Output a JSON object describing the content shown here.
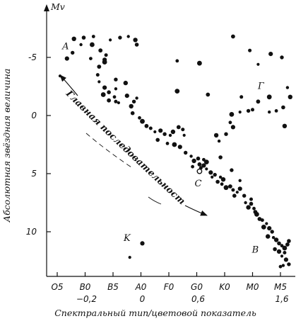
{
  "chart_data": {
    "type": "scatter",
    "title": "",
    "ylabel": "Абсолютная звёздная величина",
    "ylabel_top": "Mv",
    "xlabel": "Спектральный тип/цветовой показатель",
    "ylim": [
      13.5,
      -7.8
    ],
    "xlim": [
      -0.6,
      8.6
    ],
    "yticks": [
      "-5",
      "0",
      "5",
      "10"
    ],
    "yticks_values": [
      -5,
      0,
      5,
      10
    ],
    "xticks": [
      {
        "label": "O5",
        "sub": "",
        "x": 0
      },
      {
        "label": "B0",
        "sub": "−0,2",
        "x": 1
      },
      {
        "label": "B5",
        "sub": "",
        "x": 2
      },
      {
        "label": "A0",
        "sub": "0",
        "x": 3
      },
      {
        "label": "F0",
        "sub": "",
        "x": 4
      },
      {
        "label": "G0",
        "sub": "0,6",
        "x": 5
      },
      {
        "label": "K0",
        "sub": "",
        "x": 6
      },
      {
        "label": "M0",
        "sub": "",
        "x": 7
      },
      {
        "label": "M5",
        "sub": "1,6",
        "x": 8
      }
    ],
    "grid": false,
    "annotations": [
      {
        "text": "A",
        "x": 0.3,
        "y": -5.7
      },
      {
        "text": "Г",
        "x": 7.3,
        "y": -2.3
      },
      {
        "text": "C",
        "x": 5.05,
        "y": 6.1
      },
      {
        "text": "K",
        "x": 2.5,
        "y": 10.8
      },
      {
        "text": "B",
        "x": 7.1,
        "y": 11.8
      }
    ],
    "main_sequence_label": "Главная последовательность",
    "sun": {
      "x": 5.1,
      "y": 4.8
    },
    "series": [
      {
        "values": [
          [
            0.1,
            -3.4
          ],
          [
            0.35,
            -4.9
          ],
          [
            0.55,
            -5.4
          ],
          [
            0.85,
            -6.1
          ],
          [
            0.6,
            -6.6
          ],
          [
            0.95,
            -6.7
          ],
          [
            1.3,
            -6.8
          ],
          [
            1.25,
            -6.1
          ],
          [
            1.55,
            -5.6
          ],
          [
            1.75,
            -5.2
          ],
          [
            1.9,
            -6.5
          ],
          [
            1.7,
            -4.8
          ],
          [
            2.25,
            -6.7
          ],
          [
            2.55,
            -6.8
          ],
          [
            2.8,
            -6.5
          ],
          [
            2.85,
            -6.1
          ],
          [
            1.2,
            -4.9
          ],
          [
            1.7,
            -4.6
          ],
          [
            1.5,
            -4.2
          ],
          [
            1.45,
            -3.5
          ],
          [
            1.5,
            -2.9
          ],
          [
            1.7,
            -2.4
          ],
          [
            2.1,
            -3.1
          ],
          [
            2.1,
            -2.3
          ],
          [
            2.45,
            -2.8
          ],
          [
            1.85,
            -2.0
          ],
          [
            2.05,
            -1.6
          ],
          [
            1.65,
            -1.8
          ],
          [
            1.85,
            -1.3
          ],
          [
            2.1,
            -1.2
          ],
          [
            2.2,
            -1.1
          ],
          [
            2.5,
            -1.7
          ],
          [
            2.75,
            -1.2
          ],
          [
            2.85,
            -1.5
          ],
          [
            2.65,
            -0.8
          ],
          [
            2.7,
            -0.2
          ],
          [
            2.95,
            0.2
          ],
          [
            3.05,
            0.5
          ],
          [
            3.2,
            0.9
          ],
          [
            3.35,
            1.1
          ],
          [
            3.5,
            1.4
          ],
          [
            3.7,
            1.3
          ],
          [
            3.85,
            1.6
          ],
          [
            4.05,
            1.7
          ],
          [
            4.15,
            1.4
          ],
          [
            3.6,
            2.1
          ],
          [
            3.95,
            2.4
          ],
          [
            4.2,
            2.5
          ],
          [
            4.35,
            1.0
          ],
          [
            4.5,
            1.2
          ],
          [
            4.55,
            1.7
          ],
          [
            4.4,
            2.7
          ],
          [
            4.6,
            3.2
          ],
          [
            4.8,
            3.5
          ],
          [
            4.9,
            3.9
          ],
          [
            5.05,
            3.7
          ],
          [
            5.25,
            3.8
          ],
          [
            5.35,
            4.0
          ],
          [
            5.1,
            4.2
          ],
          [
            5.15,
            4.5
          ],
          [
            5.35,
            4.6
          ],
          [
            5.5,
            4.9
          ],
          [
            5.65,
            5.1
          ],
          [
            5.85,
            5.3
          ],
          [
            5.95,
            5.5
          ],
          [
            5.75,
            5.7
          ],
          [
            5.9,
            5.9
          ],
          [
            6.05,
            6.2
          ],
          [
            6.2,
            6.1
          ],
          [
            6.3,
            6.4
          ],
          [
            6.45,
            6.6
          ],
          [
            6.55,
            6.3
          ],
          [
            6.7,
            6.9
          ],
          [
            6.75,
            7.5
          ],
          [
            6.85,
            7.9
          ],
          [
            6.95,
            7.6
          ],
          [
            7.05,
            8.0
          ],
          [
            7.15,
            8.5
          ],
          [
            7.25,
            8.9
          ],
          [
            7.35,
            9.0
          ],
          [
            7.5,
            9.3
          ],
          [
            7.6,
            9.7
          ],
          [
            7.7,
            10.0
          ],
          [
            7.75,
            10.5
          ],
          [
            7.85,
            10.7
          ],
          [
            7.95,
            11.0
          ],
          [
            8.05,
            11.2
          ],
          [
            8.15,
            11.4
          ],
          [
            8.25,
            11.1
          ],
          [
            8.15,
            11.8
          ],
          [
            8.05,
            12.1
          ],
          [
            8.2,
            12.4
          ],
          [
            8.3,
            12.8
          ],
          [
            8.1,
            12.9
          ],
          [
            7.95,
            11.7
          ],
          [
            8.3,
            10.8
          ],
          [
            4.3,
            -4.7
          ],
          [
            5.1,
            -4.5
          ],
          [
            6.3,
            -6.8
          ],
          [
            6.9,
            -5.6
          ],
          [
            7.2,
            -4.4
          ],
          [
            7.65,
            -5.3
          ],
          [
            8.05,
            -5.0
          ],
          [
            8.25,
            -2.4
          ],
          [
            8.35,
            -1.6
          ],
          [
            8.1,
            -0.7
          ],
          [
            7.85,
            -0.4
          ],
          [
            7.6,
            -1.6
          ],
          [
            7.2,
            -1.2
          ],
          [
            7.0,
            -0.5
          ],
          [
            6.55,
            -0.3
          ],
          [
            6.3,
            1.0
          ],
          [
            6.05,
            1.6
          ],
          [
            5.8,
            2.2
          ],
          [
            5.7,
            1.7
          ],
          [
            5.85,
            3.6
          ],
          [
            6.2,
            0.6
          ],
          [
            4.3,
            -2.1
          ],
          [
            5.4,
            -1.8
          ],
          [
            6.6,
            -1.6
          ],
          [
            2.6,
            12.2
          ],
          [
            3.05,
            11.0
          ],
          [
            6.25,
            4.7
          ],
          [
            6.55,
            5.6
          ],
          [
            7.55,
            10.4
          ],
          [
            7.8,
            11.5
          ],
          [
            8.0,
            13.0
          ],
          [
            7.4,
            9.6
          ],
          [
            7.1,
            8.3
          ],
          [
            6.95,
            7.2
          ],
          [
            5.55,
            5.3
          ],
          [
            5.25,
            4.3
          ],
          [
            6.85,
            -0.4
          ],
          [
            7.6,
            -0.3
          ],
          [
            8.15,
            0.9
          ],
          [
            6.35,
            6.9
          ],
          [
            4.85,
            4.4
          ],
          [
            6.25,
            -0.1
          ]
        ]
      }
    ]
  }
}
